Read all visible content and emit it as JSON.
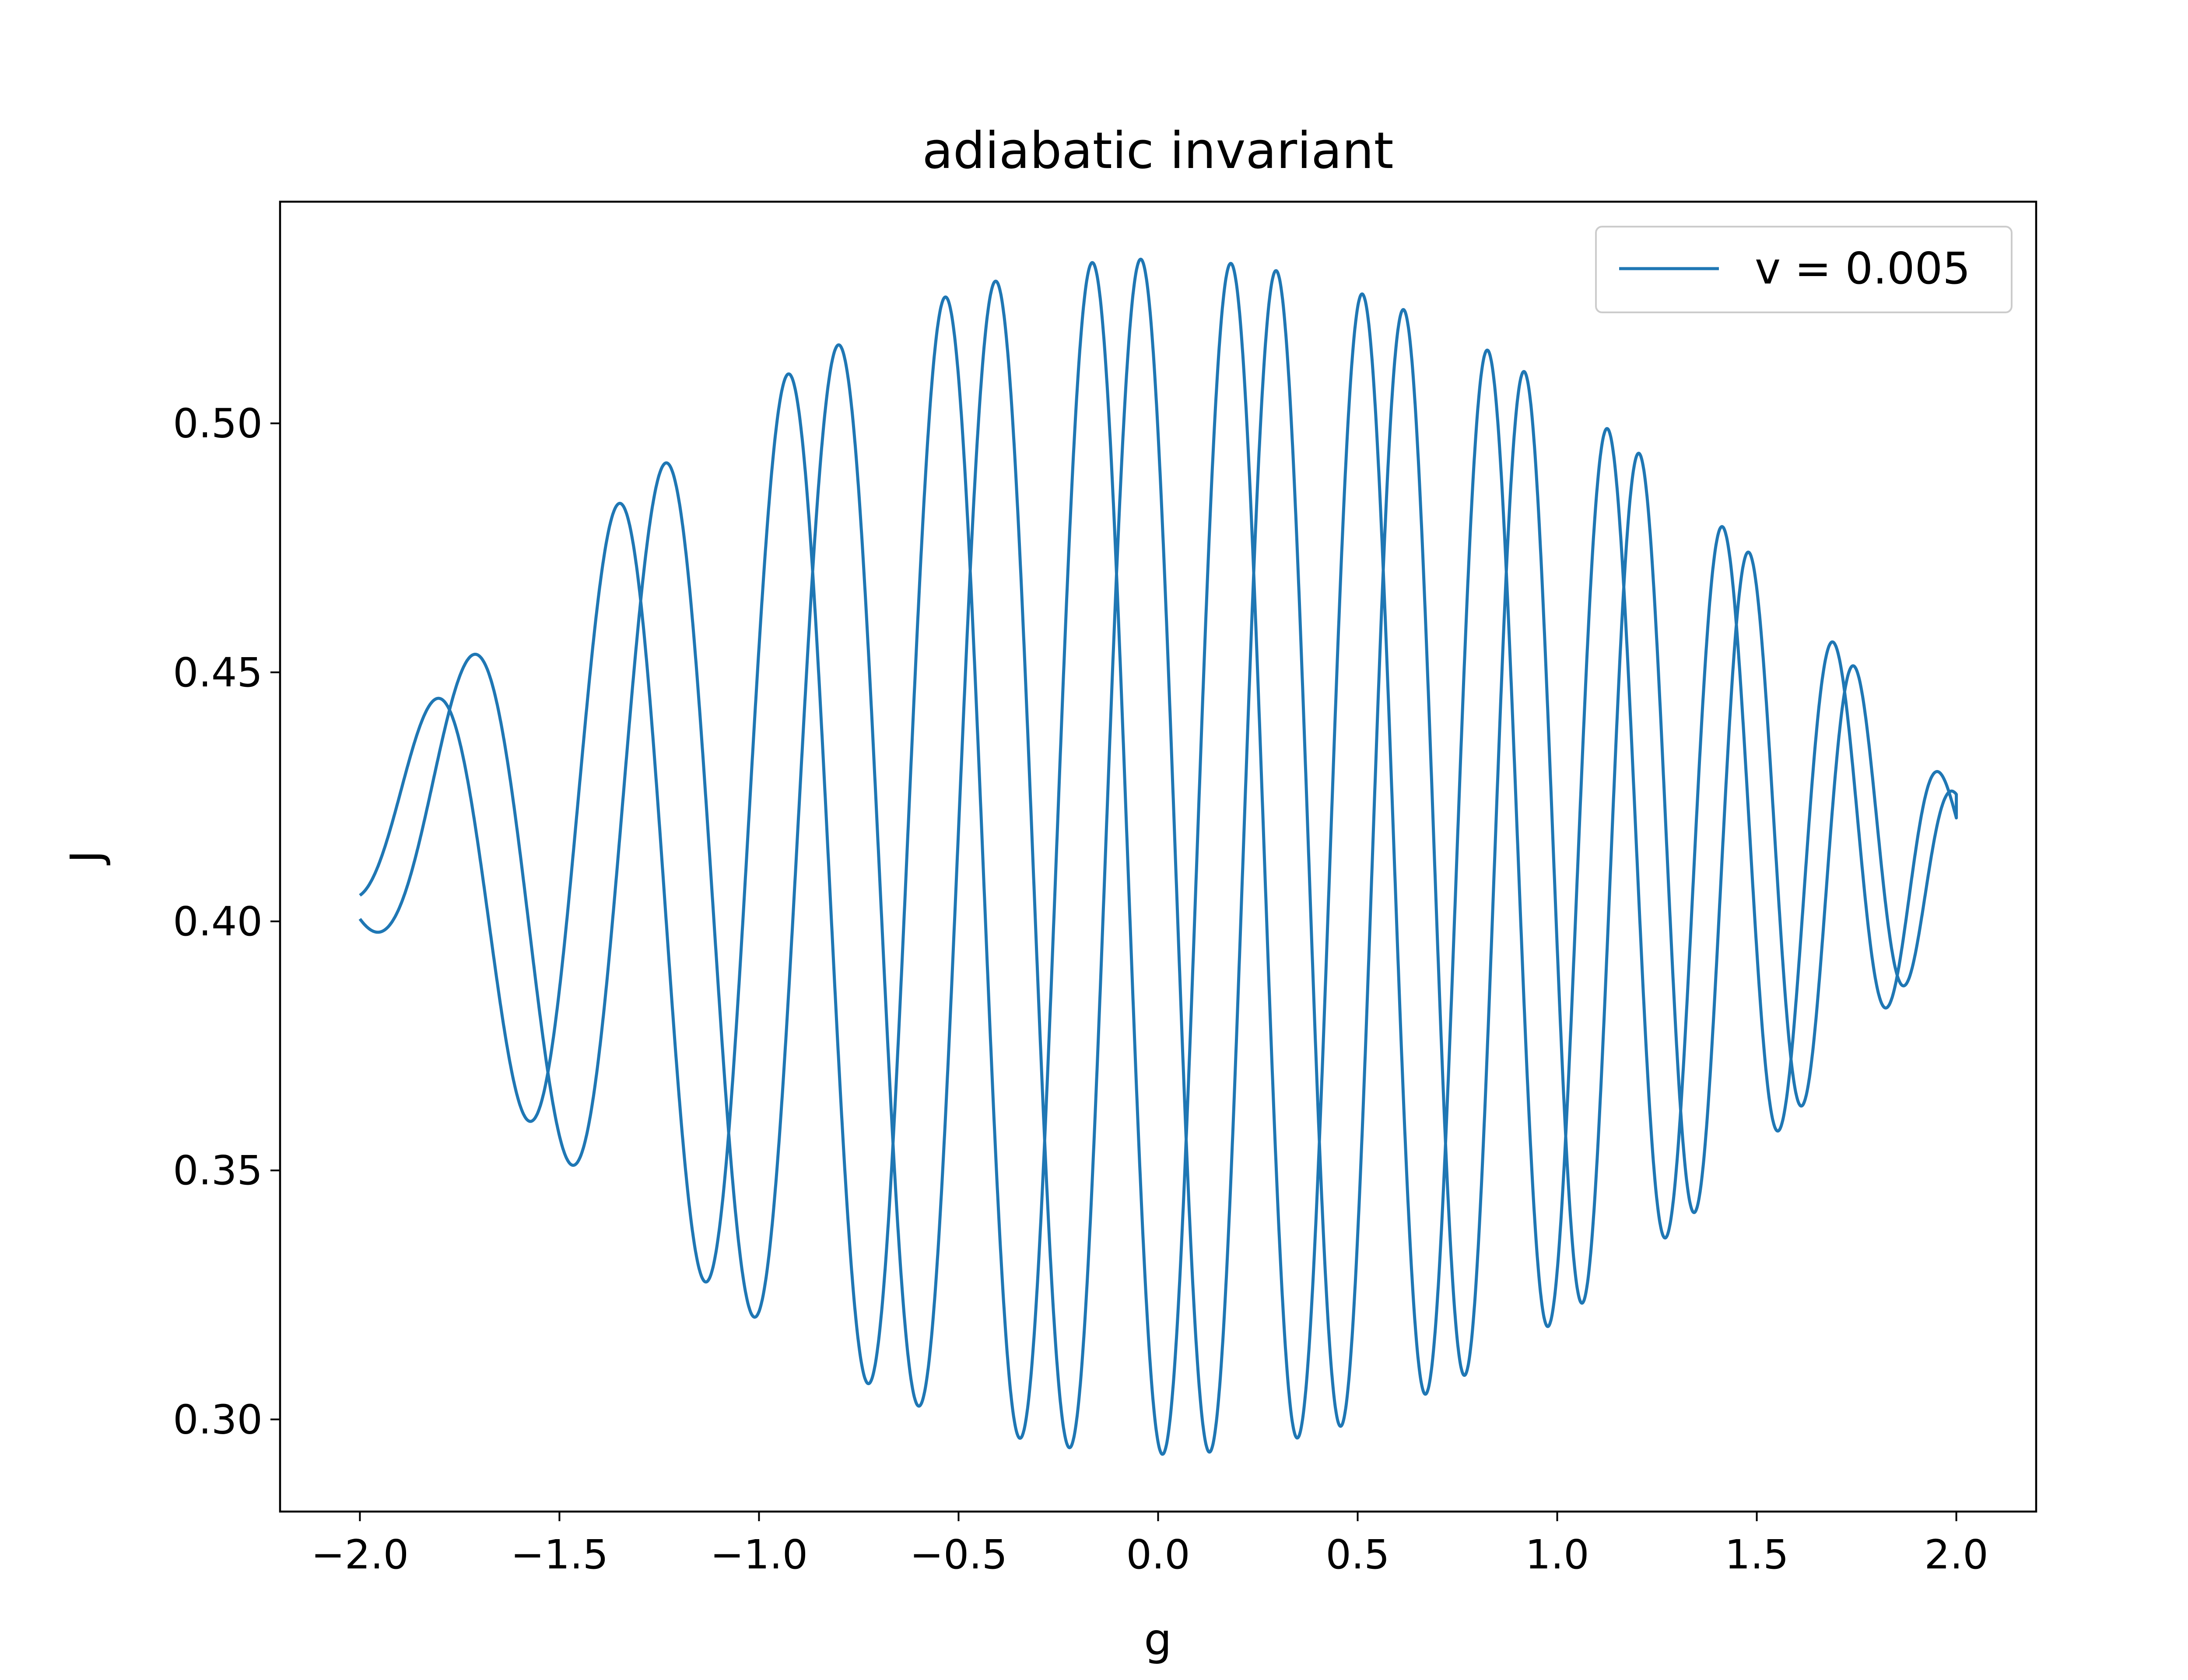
{
  "chart_data": {
    "type": "line",
    "title": "adiabatic invariant",
    "xlabel": "g",
    "ylabel": "J",
    "xlim": [
      -2.2,
      2.2
    ],
    "ylim": [
      0.2815,
      0.5445
    ],
    "xticks": [
      -2.0,
      -1.5,
      -1.0,
      -0.5,
      0.0,
      0.5,
      1.0,
      1.5,
      2.0
    ],
    "xtick_labels": [
      "−2.0",
      "−1.5",
      "−1.0",
      "−0.5",
      "0.0",
      "0.5",
      "1.0",
      "1.5",
      "2.0"
    ],
    "yticks": [
      0.3,
      0.35,
      0.4,
      0.45,
      0.5
    ],
    "ytick_labels": [
      "0.30",
      "0.35",
      "0.40",
      "0.45",
      "0.50"
    ],
    "grid": false,
    "legend_position": "top-right",
    "series": [
      {
        "name": "v = 0.005",
        "color": "#1f77b4",
        "description_points": {
          "x": [
            -2.0,
            -1.975,
            -1.93,
            -1.88,
            -1.79,
            -1.72,
            -1.57,
            -1.45,
            -1.28,
            -1.13,
            -0.97,
            -0.74,
            -0.5,
            -0.28,
            0.0,
            0.25,
            0.5,
            0.75,
            0.95,
            1.13,
            1.31,
            1.45,
            1.59,
            1.72,
            1.82,
            1.88,
            1.94,
            1.99,
            2.0
          ],
          "y": [
            0.404,
            0.418,
            0.39,
            0.431,
            0.377,
            0.446,
            0.364,
            0.461,
            0.35,
            0.478,
            0.334,
            0.502,
            0.311,
            0.531,
            0.293,
            0.533,
            0.309,
            0.504,
            0.333,
            0.48,
            0.349,
            0.462,
            0.364,
            0.446,
            0.379,
            0.432,
            0.39,
            0.418,
            0.405
          ]
        },
        "envelope": {
          "center": 0.413,
          "amp_left": 0.0125,
          "amp_mid": 0.12,
          "shape": "quadratic",
          "branch_a_freq_start": 7,
          "branch_a_freq_end": 16,
          "branch_b_freq_start": 7.8,
          "branch_b_freq_end": 15.2
        }
      }
    ]
  }
}
